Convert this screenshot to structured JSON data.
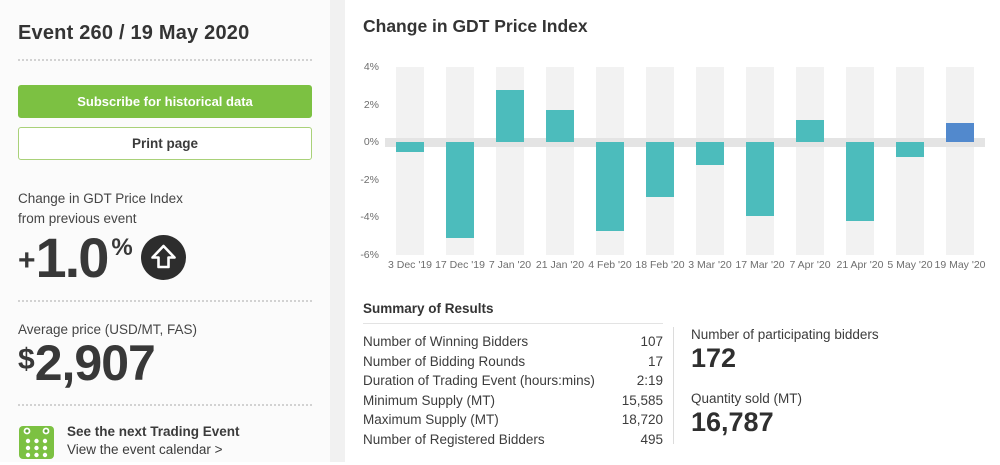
{
  "sidebar": {
    "title": "Event 260 / 19 May 2020",
    "buttons": {
      "subscribe": "Subscribe for historical data",
      "print": "Print page"
    },
    "change_stat": {
      "label_line1": "Change in GDT Price Index",
      "label_line2": "from previous event",
      "sign": "+",
      "value": "1.0",
      "unit": "%",
      "direction": "up"
    },
    "average_price": {
      "label": "Average price (USD/MT, FAS)",
      "currency": "$",
      "value": "2,907"
    },
    "next_event": {
      "title": "See the next Trading Event",
      "link": "View the event calendar >"
    }
  },
  "main": {
    "chart_title": "Change in GDT Price Index",
    "summary": {
      "heading": "Summary of Results",
      "rows": [
        {
          "label": "Number of Winning Bidders",
          "value": "107"
        },
        {
          "label": "Number of Bidding Rounds",
          "value": "17"
        },
        {
          "label": "Duration of Trading Event (hours:mins)",
          "value": "2:19"
        },
        {
          "label": "Minimum Supply (MT)",
          "value": "15,585"
        },
        {
          "label": "Maximum Supply (MT)",
          "value": "18,720"
        },
        {
          "label": "Number of Registered Bidders",
          "value": "495"
        }
      ],
      "highlights": [
        {
          "label": "Number of participating bidders",
          "value": "172"
        },
        {
          "label": "Quantity sold (MT)",
          "value": "16,787"
        }
      ]
    }
  },
  "chart_data": {
    "type": "bar",
    "title": "Change in GDT Price Index",
    "categories": [
      "3 Dec '19",
      "17 Dec '19",
      "7 Jan '20",
      "21 Jan '20",
      "4 Feb '20",
      "18 Feb '20",
      "3 Mar '20",
      "17 Mar '20",
      "7 Apr '20",
      "21 Apr '20",
      "5 May '20",
      "19 May '20"
    ],
    "values": [
      -0.5,
      -5.1,
      2.8,
      1.7,
      -4.7,
      -2.9,
      -1.2,
      -3.9,
      1.2,
      -4.2,
      -0.8,
      1.0
    ],
    "unit": "%",
    "xlabel": "",
    "ylabel": "",
    "ylim": [
      -6,
      4
    ],
    "yticks": [
      "4%",
      "2%",
      "0%",
      "-2%",
      "-4%",
      "-6%"
    ],
    "legend": "none",
    "grid": "alternating-column-bands",
    "bar_color": "#4cbcbc",
    "highlight_color": "#5289cd",
    "highlight_index": 11
  },
  "colors": {
    "brand_green": "#7cc142",
    "teal_bar": "#4cbcbc",
    "highlight_blue": "#5289cd",
    "zero_band": "#e4e4e4",
    "column_band": "#f2f2f2",
    "icon_black": "#2d2d2d",
    "dark_text": "#383838"
  }
}
